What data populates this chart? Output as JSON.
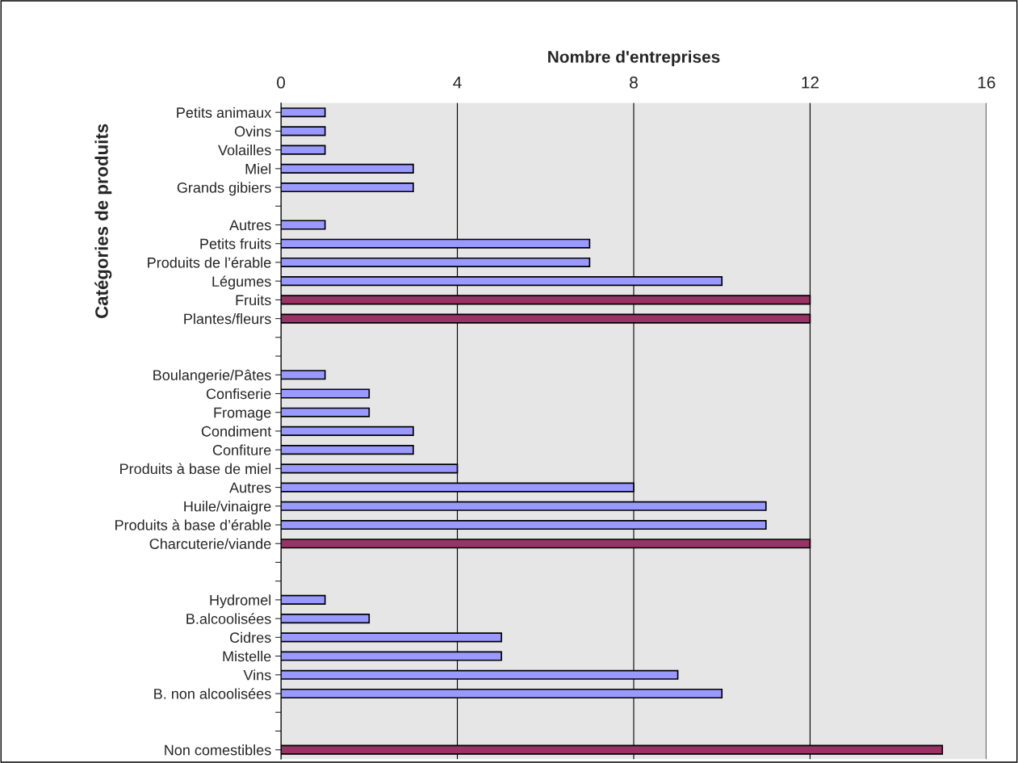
{
  "chart_data": {
    "type": "bar",
    "orientation": "horizontal",
    "xlabel": "Nombre d'entreprises",
    "ylabel": "Catégories de produits",
    "categories": [
      "Petits animaux",
      "Ovins",
      "Volailles",
      "Miel",
      "Grands gibiers",
      null,
      "Autres",
      "Petits fruits",
      "Produits de l’érable",
      "Légumes",
      "Fruits",
      "Plantes/fleurs",
      null,
      null,
      "Boulangerie/Pâtes",
      "Confiserie",
      "Fromage",
      "Condiment",
      "Confiture",
      "Produits à base de miel",
      "Autres",
      "Huile/vinaigre",
      "Produits à base d’érable",
      "Charcuterie/viande",
      null,
      null,
      "Hydromel",
      "B.alcoolisées",
      "Cidres",
      "Mistelle",
      "Vins",
      "B. non alcoolisées",
      null,
      null,
      "Non comestibles"
    ],
    "values": [
      1,
      1,
      1,
      3,
      3,
      null,
      1,
      7,
      7,
      10,
      12,
      12,
      null,
      null,
      1,
      2,
      2,
      3,
      3,
      4,
      8,
      11,
      11,
      12,
      null,
      null,
      1,
      2,
      5,
      5,
      9,
      10,
      null,
      null,
      15
    ],
    "colors": [
      "#9999ff",
      "#9999ff",
      "#9999ff",
      "#9999ff",
      "#9999ff",
      null,
      "#9999ff",
      "#9999ff",
      "#9999ff",
      "#9999ff",
      "#993366",
      "#993366",
      null,
      null,
      "#9999ff",
      "#9999ff",
      "#9999ff",
      "#9999ff",
      "#9999ff",
      "#9999ff",
      "#9999ff",
      "#9999ff",
      "#9999ff",
      "#993366",
      null,
      null,
      "#9999ff",
      "#9999ff",
      "#9999ff",
      "#9999ff",
      "#9999ff",
      "#9999ff",
      null,
      null,
      "#993366"
    ],
    "xlim": [
      0,
      16
    ],
    "xticks": [
      0,
      4,
      8,
      12,
      16
    ],
    "grid": "x",
    "legend": false
  }
}
